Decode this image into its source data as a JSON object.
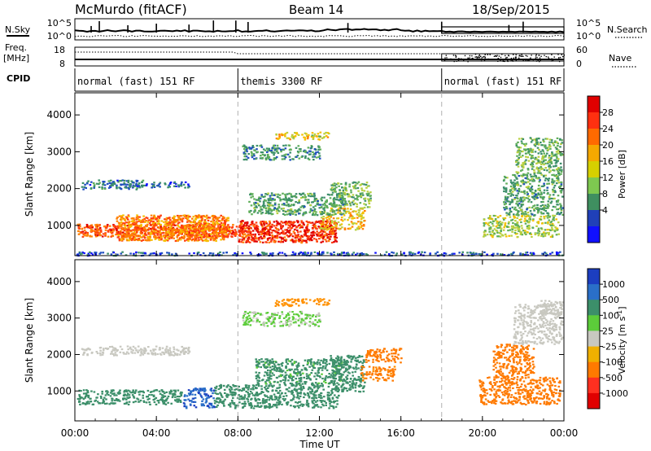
{
  "header": {
    "station": "McMurdo (fitACF)",
    "beam": "Beam 14",
    "date": "18/Sep/2015"
  },
  "top_panels": {
    "nsky_label": "N.Sky",
    "nsky_ticks": [
      "10^5",
      "10^0"
    ],
    "nsearch_label": "N.Search",
    "nsearch_ticks": [
      "10^5",
      "10^0"
    ],
    "freq_label": "Freq.",
    "freq_unit": "[MHz]",
    "freq_ticks": [
      "18",
      "8"
    ],
    "nave_label": "Nave",
    "nave_ticks": [
      "60",
      "0"
    ],
    "cpid_label": "CPID",
    "cpid_segments": [
      {
        "label": "normal (fast) 151 RF",
        "start_h": 0,
        "end_h": 8
      },
      {
        "label": "themis 3300 RF",
        "start_h": 8,
        "end_h": 18
      },
      {
        "label": "normal (fast) 151 RF",
        "start_h": 18,
        "end_h": 24
      }
    ]
  },
  "xaxis": {
    "label": "Time UT",
    "ticks": [
      "00:00",
      "04:00",
      "08:00",
      "12:00",
      "16:00",
      "20:00",
      "00:00"
    ]
  },
  "power_colorbar": {
    "title": "Power [dB]",
    "labels": [
      "28",
      "24",
      "20",
      "16",
      "12",
      "8",
      "4"
    ],
    "colors": [
      "#e00000",
      "#ff3010",
      "#ff6a00",
      "#f5a800",
      "#d6d000",
      "#7ec850",
      "#3f8f60",
      "#2040b8",
      "#1010ff"
    ]
  },
  "velocity_colorbar": {
    "title": "Velocity [m s",
    "title_sup": "-1",
    "labels": [
      "1000",
      "500",
      "100",
      "25",
      "-25",
      "-100",
      "-500",
      "-1000"
    ],
    "colors": [
      "#1c3ec0",
      "#2a6fc8",
      "#3c8f6a",
      "#5ccc3a",
      "#c8c8c0",
      "#f0b000",
      "#ff7a00",
      "#ff3020",
      "#e00000"
    ]
  },
  "chart_data": [
    {
      "type": "heatmap",
      "title": "Power",
      "xlabel": "Time UT",
      "ylabel": "Slant Range [km]",
      "xlim": [
        0,
        24
      ],
      "ylim": [
        180,
        4600
      ],
      "yticks": [
        1000,
        2000,
        3000,
        4000
      ],
      "colorbar": {
        "label": "Power [dB]",
        "range": [
          0,
          30
        ]
      },
      "regions": [
        {
          "t0": 0.1,
          "t1": 7.9,
          "r0": 700,
          "r1": 1050,
          "db": 24
        },
        {
          "t0": 2.0,
          "t1": 7.5,
          "r0": 600,
          "r1": 1300,
          "db": 22
        },
        {
          "t0": 8.0,
          "t1": 12.8,
          "r0": 550,
          "r1": 1150,
          "db": 26
        },
        {
          "t0": 12.0,
          "t1": 14.2,
          "r0": 900,
          "r1": 1500,
          "db": 18
        },
        {
          "t0": 12.5,
          "t1": 14.5,
          "r0": 1500,
          "r1": 2200,
          "db": 12
        },
        {
          "t0": 8.5,
          "t1": 13.2,
          "r0": 1300,
          "r1": 1900,
          "db": 10
        },
        {
          "t0": 0.3,
          "t1": 3.3,
          "r0": 2000,
          "r1": 2250,
          "db": 7
        },
        {
          "t0": 2.2,
          "t1": 5.6,
          "r0": 2050,
          "r1": 2200,
          "db": 6
        },
        {
          "t0": 8.2,
          "t1": 12.0,
          "r0": 2800,
          "r1": 3200,
          "db": 9
        },
        {
          "t0": 9.8,
          "t1": 12.5,
          "r0": 3350,
          "r1": 3550,
          "db": 17
        },
        {
          "t0": 20.0,
          "t1": 23.7,
          "r0": 700,
          "r1": 1300,
          "db": 14
        },
        {
          "t0": 21.0,
          "t1": 23.9,
          "r0": 1300,
          "r1": 2400,
          "db": 10
        },
        {
          "t0": 21.6,
          "t1": 23.9,
          "r0": 2400,
          "r1": 3400,
          "db": 12
        },
        {
          "t0": 0.0,
          "t1": 24.0,
          "r0": 200,
          "r1": 300,
          "db": 5
        }
      ]
    },
    {
      "type": "heatmap",
      "title": "Velocity",
      "xlabel": "Time UT",
      "ylabel": "Slant Range [km]",
      "xlim": [
        0,
        24
      ],
      "ylim": [
        180,
        4600
      ],
      "yticks": [
        1000,
        2000,
        3000,
        4000
      ],
      "colorbar": {
        "label": "Velocity [m s-1]",
        "range": [
          -1000,
          1000
        ]
      },
      "regions": [
        {
          "t0": 0.1,
          "t1": 5.2,
          "r0": 650,
          "r1": 1050,
          "v": 120
        },
        {
          "t0": 5.3,
          "t1": 6.8,
          "r0": 550,
          "r1": 1100,
          "v": 700
        },
        {
          "t0": 6.8,
          "t1": 12.9,
          "r0": 550,
          "r1": 1200,
          "v": 110
        },
        {
          "t0": 8.8,
          "t1": 13.2,
          "r0": 1200,
          "r1": 1900,
          "v": 80
        },
        {
          "t0": 12.5,
          "t1": 14.2,
          "r0": 1000,
          "r1": 2000,
          "v": 90
        },
        {
          "t0": 14.2,
          "t1": 16.0,
          "r0": 1800,
          "r1": 2200,
          "v": -400
        },
        {
          "t0": 14.0,
          "t1": 15.7,
          "r0": 1300,
          "r1": 1700,
          "v": -350
        },
        {
          "t0": 0.3,
          "t1": 5.6,
          "r0": 2000,
          "r1": 2250,
          "v": 0
        },
        {
          "t0": 8.2,
          "t1": 12.0,
          "r0": 2800,
          "r1": 3200,
          "v": 30
        },
        {
          "t0": 9.8,
          "t1": 12.5,
          "r0": 3350,
          "r1": 3550,
          "v": -120
        },
        {
          "t0": 19.8,
          "t1": 23.8,
          "r0": 650,
          "r1": 1400,
          "v": -450
        },
        {
          "t0": 20.5,
          "t1": 22.5,
          "r0": 1400,
          "r1": 2300,
          "v": -420
        },
        {
          "t0": 21.5,
          "t1": 23.9,
          "r0": 2300,
          "r1": 3400,
          "v": 5
        },
        {
          "t0": 22.8,
          "t1": 23.9,
          "r0": 3100,
          "r1": 3500,
          "v": 0
        }
      ]
    }
  ]
}
